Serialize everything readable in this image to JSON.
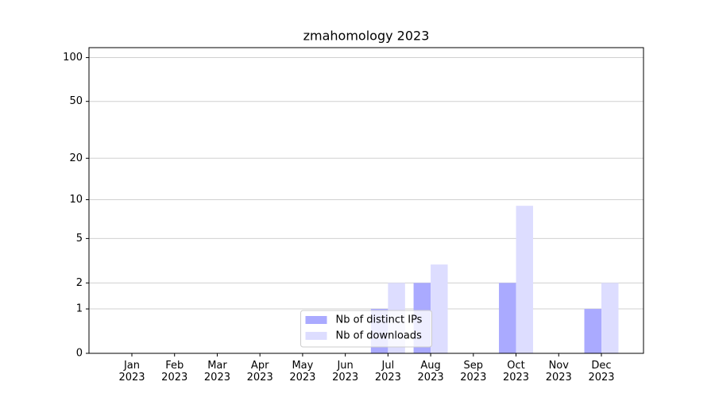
{
  "chart_data": {
    "type": "bar",
    "title": "zmahomology 2023",
    "categories": [
      "Jan\n2023",
      "Feb\n2023",
      "Mar\n2023",
      "Apr\n2023",
      "May\n2023",
      "Jun\n2023",
      "Jul\n2023",
      "Aug\n2023",
      "Sep\n2023",
      "Oct\n2023",
      "Nov\n2023",
      "Dec\n2023"
    ],
    "series": [
      {
        "name": "Nb of distinct IPs",
        "color": "#aaaaff",
        "values": [
          0,
          0,
          0,
          0,
          0,
          0,
          1,
          2,
          0,
          2,
          0,
          1
        ]
      },
      {
        "name": "Nb of downloads",
        "color": "#ddddff",
        "values": [
          0,
          0,
          0,
          0,
          0,
          0,
          2,
          3,
          0,
          9,
          0,
          2
        ]
      }
    ],
    "yscale": "log1p",
    "ylim": [
      0,
      117
    ],
    "yticks": [
      0,
      1,
      2,
      5,
      10,
      20,
      50,
      100
    ],
    "grid": true,
    "legend": "lower center"
  }
}
